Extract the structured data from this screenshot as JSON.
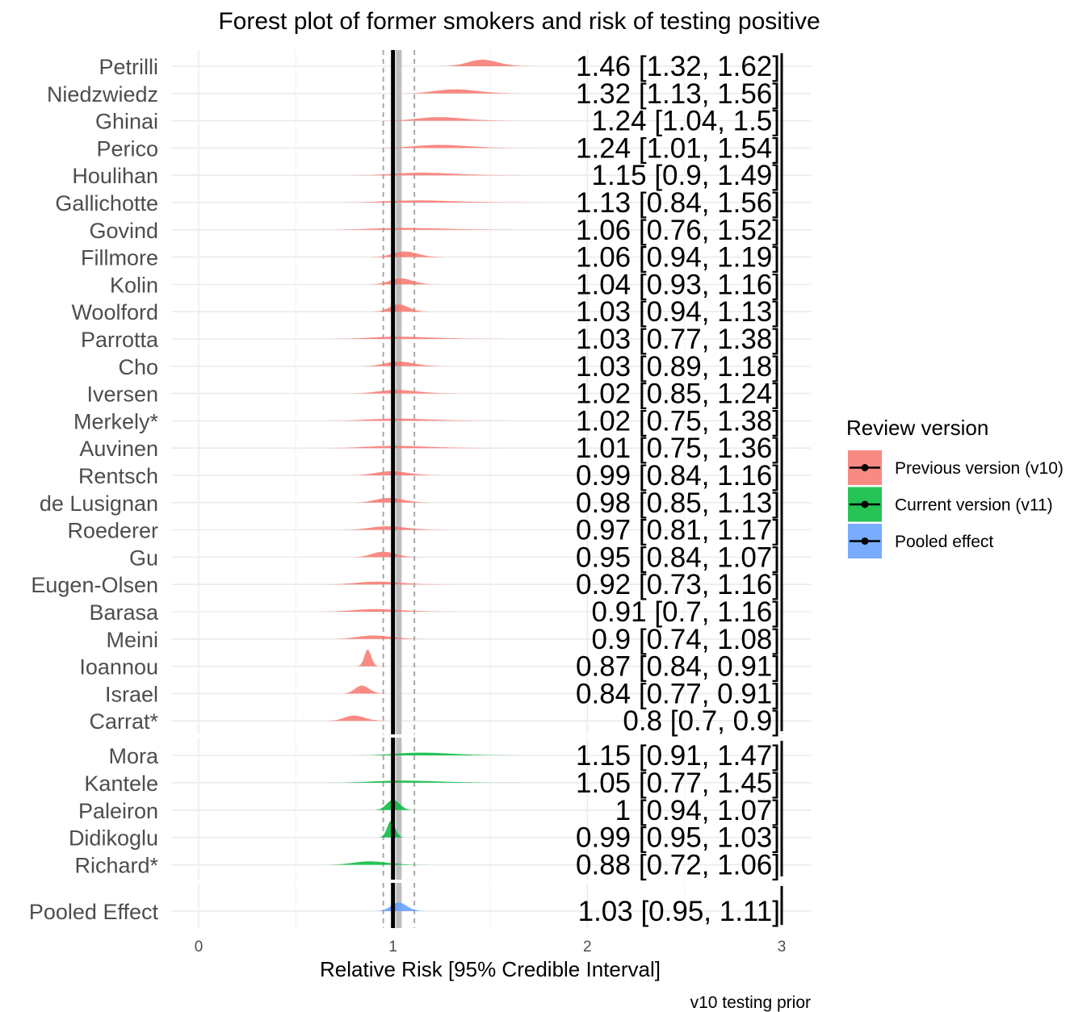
{
  "chart_data": {
    "type": "forest",
    "title": "Forest plot of former smokers and risk of testing positive",
    "xlabel": "Relative Risk [95% Credible Interval]",
    "caption": "v10 testing prior",
    "xlim": [
      0,
      3
    ],
    "xticks": [
      "0",
      "1",
      "2",
      "3"
    ],
    "null_value": 1,
    "pooled_estimate": 1.03,
    "pooled_interval": [
      0.95,
      1.11
    ],
    "grid": true,
    "legend": {
      "title": "Review version",
      "position": "right",
      "items": [
        {
          "label": "Previous version (v10)",
          "color": "#f8766d"
        },
        {
          "label": "Current version (v11)",
          "color": "#00ba38"
        },
        {
          "label": "Pooled effect",
          "color": "#619cff"
        }
      ]
    },
    "groups": [
      {
        "name": "v10",
        "color": "#f8766d",
        "studies": [
          {
            "study": "Petrilli",
            "est": 1.46,
            "lo": 1.32,
            "hi": 1.62,
            "label": "1.46 [1.32, 1.62]"
          },
          {
            "study": "Niedzwiedz",
            "est": 1.32,
            "lo": 1.13,
            "hi": 1.56,
            "label": "1.32 [1.13, 1.56]"
          },
          {
            "study": "Ghinai",
            "est": 1.24,
            "lo": 1.04,
            "hi": 1.5,
            "label": "1.24 [1.04, 1.5]"
          },
          {
            "study": "Perico",
            "est": 1.24,
            "lo": 1.01,
            "hi": 1.54,
            "label": "1.24 [1.01, 1.54]"
          },
          {
            "study": "Houlihan",
            "est": 1.15,
            "lo": 0.9,
            "hi": 1.49,
            "label": "1.15 [0.9, 1.49]"
          },
          {
            "study": "Gallichotte",
            "est": 1.13,
            "lo": 0.84,
            "hi": 1.56,
            "label": "1.13 [0.84, 1.56]"
          },
          {
            "study": "Govind",
            "est": 1.06,
            "lo": 0.76,
            "hi": 1.52,
            "label": "1.06 [0.76, 1.52]"
          },
          {
            "study": "Fillmore",
            "est": 1.06,
            "lo": 0.94,
            "hi": 1.19,
            "label": "1.06 [0.94, 1.19]"
          },
          {
            "study": "Kolin",
            "est": 1.04,
            "lo": 0.93,
            "hi": 1.16,
            "label": "1.04 [0.93, 1.16]"
          },
          {
            "study": "Woolford",
            "est": 1.03,
            "lo": 0.94,
            "hi": 1.13,
            "label": "1.03 [0.94, 1.13]"
          },
          {
            "study": "Parrotta",
            "est": 1.03,
            "lo": 0.77,
            "hi": 1.38,
            "label": "1.03 [0.77, 1.38]"
          },
          {
            "study": "Cho",
            "est": 1.03,
            "lo": 0.89,
            "hi": 1.18,
            "label": "1.03 [0.89, 1.18]"
          },
          {
            "study": "Iversen",
            "est": 1.02,
            "lo": 0.85,
            "hi": 1.24,
            "label": "1.02 [0.85, 1.24]"
          },
          {
            "study": "Merkely*",
            "est": 1.02,
            "lo": 0.75,
            "hi": 1.38,
            "label": "1.02 [0.75, 1.38]"
          },
          {
            "study": "Auvinen",
            "est": 1.01,
            "lo": 0.75,
            "hi": 1.36,
            "label": "1.01 [0.75, 1.36]"
          },
          {
            "study": "Rentsch",
            "est": 0.99,
            "lo": 0.84,
            "hi": 1.16,
            "label": "0.99 [0.84, 1.16]"
          },
          {
            "study": "de Lusignan",
            "est": 0.98,
            "lo": 0.85,
            "hi": 1.13,
            "label": "0.98 [0.85, 1.13]"
          },
          {
            "study": "Roederer",
            "est": 0.97,
            "lo": 0.81,
            "hi": 1.17,
            "label": "0.97 [0.81, 1.17]"
          },
          {
            "study": "Gu",
            "est": 0.95,
            "lo": 0.84,
            "hi": 1.07,
            "label": "0.95 [0.84, 1.07]"
          },
          {
            "study": "Eugen-Olsen",
            "est": 0.92,
            "lo": 0.73,
            "hi": 1.16,
            "label": "0.92 [0.73, 1.16]"
          },
          {
            "study": "Barasa",
            "est": 0.91,
            "lo": 0.7,
            "hi": 1.16,
            "label": "0.91 [0.7, 1.16]"
          },
          {
            "study": "Meini",
            "est": 0.9,
            "lo": 0.74,
            "hi": 1.08,
            "label": "0.9 [0.74, 1.08]"
          },
          {
            "study": "Ioannou",
            "est": 0.87,
            "lo": 0.84,
            "hi": 0.91,
            "label": "0.87 [0.84, 0.91]"
          },
          {
            "study": "Israel",
            "est": 0.84,
            "lo": 0.77,
            "hi": 0.91,
            "label": "0.84 [0.77, 0.91]"
          },
          {
            "study": "Carrat*",
            "est": 0.8,
            "lo": 0.7,
            "hi": 0.9,
            "label": "0.8 [0.7, 0.9]"
          }
        ]
      },
      {
        "name": "v11",
        "color": "#00ba38",
        "studies": [
          {
            "study": "Mora",
            "est": 1.15,
            "lo": 0.91,
            "hi": 1.47,
            "label": "1.15 [0.91, 1.47]"
          },
          {
            "study": "Kantele",
            "est": 1.05,
            "lo": 0.77,
            "hi": 1.45,
            "label": "1.05 [0.77, 1.45]"
          },
          {
            "study": "Paleiron",
            "est": 1.0,
            "lo": 0.94,
            "hi": 1.07,
            "label": "1 [0.94, 1.07]"
          },
          {
            "study": "Didikoglu",
            "est": 0.99,
            "lo": 0.95,
            "hi": 1.03,
            "label": "0.99 [0.95, 1.03]"
          },
          {
            "study": "Richard*",
            "est": 0.88,
            "lo": 0.72,
            "hi": 1.06,
            "label": "0.88 [0.72, 1.06]"
          }
        ]
      },
      {
        "name": "pooled",
        "color": "#619cff",
        "studies": [
          {
            "study": "Pooled Effect",
            "est": 1.03,
            "lo": 0.95,
            "hi": 1.11,
            "label": "1.03 [0.95, 1.11]"
          }
        ]
      }
    ]
  }
}
